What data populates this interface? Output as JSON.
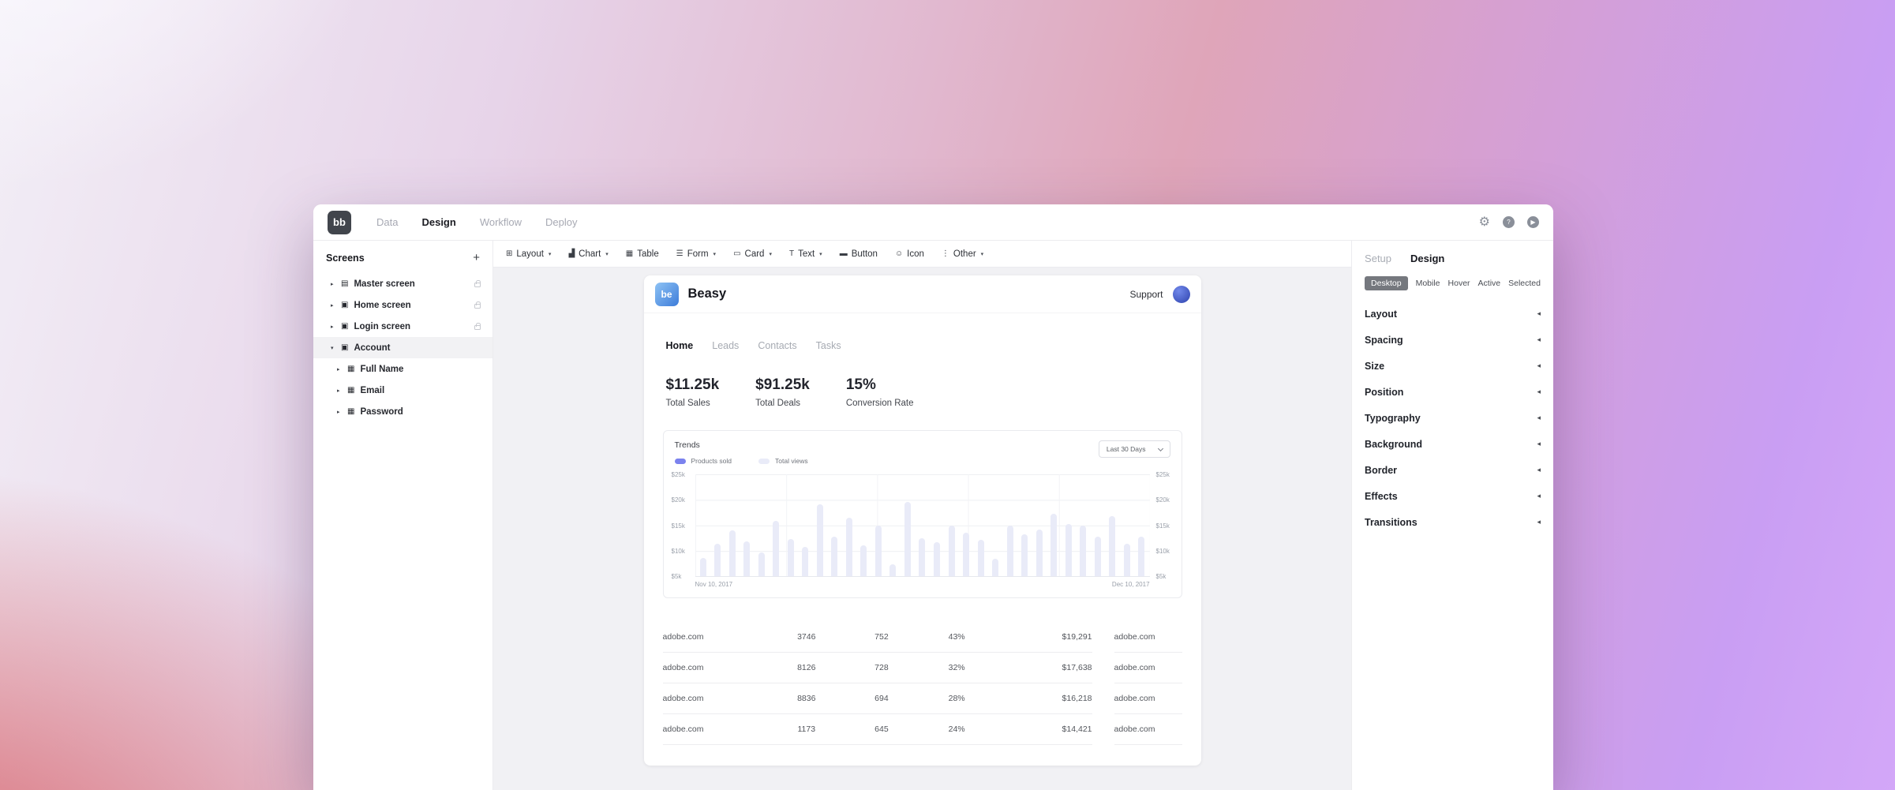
{
  "topbar": {
    "logo_text": "bb",
    "tabs": [
      {
        "label": "Data",
        "active": false
      },
      {
        "label": "Design",
        "active": true
      },
      {
        "label": "Workflow",
        "active": false
      },
      {
        "label": "Deploy",
        "active": false
      }
    ],
    "icons": [
      "settings",
      "help",
      "run"
    ],
    "help_glyph": "?",
    "run_glyph": "▶",
    "settings_glyph": "⚙"
  },
  "screens_panel": {
    "title": "Screens",
    "add_label": "+",
    "items": [
      {
        "depth": 0,
        "icon": "master",
        "label": "Master screen",
        "expanded": false,
        "locked": true,
        "selected": false
      },
      {
        "depth": 0,
        "icon": "screen",
        "label": "Home screen",
        "expanded": false,
        "locked": true,
        "selected": false
      },
      {
        "depth": 0,
        "icon": "screen",
        "label": "Login screen",
        "expanded": false,
        "locked": true,
        "selected": false
      },
      {
        "depth": 0,
        "icon": "screen",
        "label": "Account",
        "expanded": true,
        "locked": false,
        "selected": true
      },
      {
        "depth": 1,
        "icon": "field",
        "label": "Full Name",
        "expanded": false,
        "locked": false,
        "selected": false
      },
      {
        "depth": 1,
        "icon": "field",
        "label": "Email",
        "expanded": false,
        "locked": false,
        "selected": false
      },
      {
        "depth": 1,
        "icon": "field",
        "label": "Password",
        "expanded": false,
        "locked": false,
        "selected": false
      }
    ]
  },
  "toolbar": {
    "items": [
      {
        "icon": "layout",
        "label": "Layout",
        "dropdown": true
      },
      {
        "icon": "chart",
        "label": "Chart",
        "dropdown": true
      },
      {
        "icon": "table",
        "label": "Table",
        "dropdown": false
      },
      {
        "icon": "form",
        "label": "Form",
        "dropdown": true
      },
      {
        "icon": "card",
        "label": "Card",
        "dropdown": true
      },
      {
        "icon": "text",
        "label": "Text",
        "dropdown": true
      },
      {
        "icon": "button",
        "label": "Button",
        "dropdown": false
      },
      {
        "icon": "icon",
        "label": "Icon",
        "dropdown": false
      },
      {
        "icon": "other",
        "label": "Other",
        "dropdown": true
      }
    ]
  },
  "app": {
    "logo_text": "be",
    "title": "Beasy",
    "support_label": "Support",
    "tabs": [
      {
        "label": "Home",
        "active": true
      },
      {
        "label": "Leads",
        "active": false
      },
      {
        "label": "Contacts",
        "active": false
      },
      {
        "label": "Tasks",
        "active": false
      }
    ],
    "metrics": [
      {
        "value": "$11.25k",
        "label": "Total Sales"
      },
      {
        "value": "$91.25k",
        "label": "Total Deals"
      },
      {
        "value": "15%",
        "label": "Conversion Rate"
      }
    ],
    "table": {
      "rows": [
        [
          "adobe.com",
          "3746",
          "752",
          "43%",
          "$19,291"
        ],
        [
          "adobe.com",
          "8126",
          "728",
          "32%",
          "$17,638"
        ],
        [
          "adobe.com",
          "8836",
          "694",
          "28%",
          "$16,218"
        ],
        [
          "adobe.com",
          "1173",
          "645",
          "24%",
          "$14,421"
        ]
      ],
      "side_rows": [
        "adobe.com",
        "adobe.com",
        "adobe.com",
        "adobe.com"
      ]
    }
  },
  "chart_data": {
    "type": "bar",
    "title": "Trends",
    "legend": [
      {
        "label": "Products sold",
        "color": "#7b82ee"
      },
      {
        "label": "Total views",
        "color": "#e9ebf8"
      }
    ],
    "legend_position": "top-left",
    "range_selector": "Last 30 Days",
    "y_ticks": [
      "$25k",
      "$20k",
      "$15k",
      "$10k",
      "$5k"
    ],
    "ylim": [
      5,
      25
    ],
    "x_start_label": "Nov 10, 2017",
    "x_end_label": "Dec 10, 2017",
    "grid": true,
    "bar_color": "#e9ebf8",
    "values_k": [
      8.5,
      11.4,
      14,
      11.9,
      9.6,
      15.8,
      12.3,
      10.7,
      19.1,
      12.7,
      16.4,
      11,
      15,
      7.3,
      19.6,
      12.4,
      11.7,
      15,
      13.5,
      12.2,
      8.4,
      15,
      13.2,
      14.2,
      17.3,
      15.2,
      15,
      12.8,
      16.8,
      11.4,
      12.7
    ]
  },
  "inspector": {
    "tabs": [
      {
        "label": "Setup",
        "active": false
      },
      {
        "label": "Design",
        "active": true
      }
    ],
    "states": [
      {
        "label": "Desktop",
        "active": true
      },
      {
        "label": "Mobile",
        "active": false
      },
      {
        "label": "Hover",
        "active": false
      },
      {
        "label": "Active",
        "active": false
      },
      {
        "label": "Selected",
        "active": false
      }
    ],
    "sections": [
      "Layout",
      "Spacing",
      "Size",
      "Position",
      "Typography",
      "Background",
      "Border",
      "Effects",
      "Transitions"
    ]
  },
  "colors": {
    "accent_purple": "#7b82ee",
    "bar_fill": "#e9ebf8",
    "canvas_bg": "#f1f1f4",
    "logo_blue_start": "#8ec3f5",
    "logo_blue_end": "#3d7cd9"
  }
}
